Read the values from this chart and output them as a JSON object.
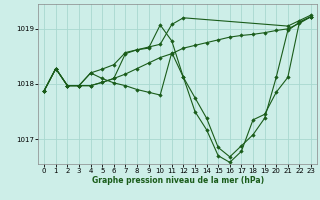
{
  "xlabel": "Graphe pression niveau de la mer (hPa)",
  "background_color": "#cdeee8",
  "grid_color": "#a8d8d0",
  "line_color": "#1a5c1a",
  "ylim": [
    1016.55,
    1019.45
  ],
  "xlim": [
    -0.5,
    23.5
  ],
  "yticks": [
    1017,
    1018,
    1019
  ],
  "xticks": [
    0,
    1,
    2,
    3,
    4,
    5,
    6,
    7,
    8,
    9,
    10,
    11,
    12,
    13,
    14,
    15,
    16,
    17,
    18,
    19,
    20,
    21,
    22,
    23
  ],
  "series": [
    {
      "x": [
        0,
        1,
        2,
        3,
        4,
        5,
        6,
        7,
        8,
        9,
        10,
        11,
        12,
        13,
        14,
        15,
        16,
        17,
        18,
        19,
        20,
        21,
        22,
        23
      ],
      "y": [
        1017.88,
        1018.28,
        1017.97,
        1017.97,
        1017.97,
        1018.03,
        1018.1,
        1018.18,
        1018.28,
        1018.38,
        1018.48,
        1018.55,
        1018.65,
        1018.7,
        1018.75,
        1018.8,
        1018.85,
        1018.88,
        1018.9,
        1018.93,
        1018.97,
        1019.0,
        1019.1,
        1019.22
      ]
    },
    {
      "x": [
        0,
        1,
        2,
        3,
        4,
        5,
        6,
        7,
        8,
        9,
        10,
        11,
        12,
        13,
        14,
        15,
        16,
        17,
        18,
        19,
        20,
        21,
        22,
        23
      ],
      "y": [
        1017.88,
        1018.28,
        1017.97,
        1017.97,
        1018.2,
        1018.27,
        1018.35,
        1018.57,
        1018.62,
        1018.65,
        1019.07,
        1018.78,
        1018.12,
        1017.75,
        1017.38,
        1016.85,
        1016.68,
        1016.88,
        1017.08,
        1017.38,
        1018.12,
        1018.97,
        1019.12,
        1019.22
      ]
    },
    {
      "x": [
        0,
        1,
        2,
        3,
        4,
        5,
        6,
        7,
        8,
        9,
        10,
        11,
        12,
        13,
        14,
        15,
        16,
        17,
        18,
        19,
        20,
        21,
        22,
        23
      ],
      "y": [
        1017.88,
        1018.28,
        1017.97,
        1017.97,
        1018.2,
        1018.1,
        1018.02,
        1017.97,
        1017.9,
        1017.85,
        1017.8,
        1018.57,
        1018.12,
        1017.5,
        1017.17,
        1016.7,
        1016.58,
        1016.78,
        1017.35,
        1017.45,
        1017.85,
        1018.12,
        1019.12,
        1019.22
      ]
    },
    {
      "x": [
        0,
        1,
        2,
        3,
        4,
        5,
        6,
        7,
        8,
        9,
        10,
        11,
        12,
        21,
        22,
        23
      ],
      "y": [
        1017.88,
        1018.28,
        1017.97,
        1017.97,
        1017.97,
        1018.03,
        1018.1,
        1018.55,
        1018.62,
        1018.67,
        1018.72,
        1019.08,
        1019.2,
        1019.05,
        1019.15,
        1019.25
      ]
    }
  ]
}
